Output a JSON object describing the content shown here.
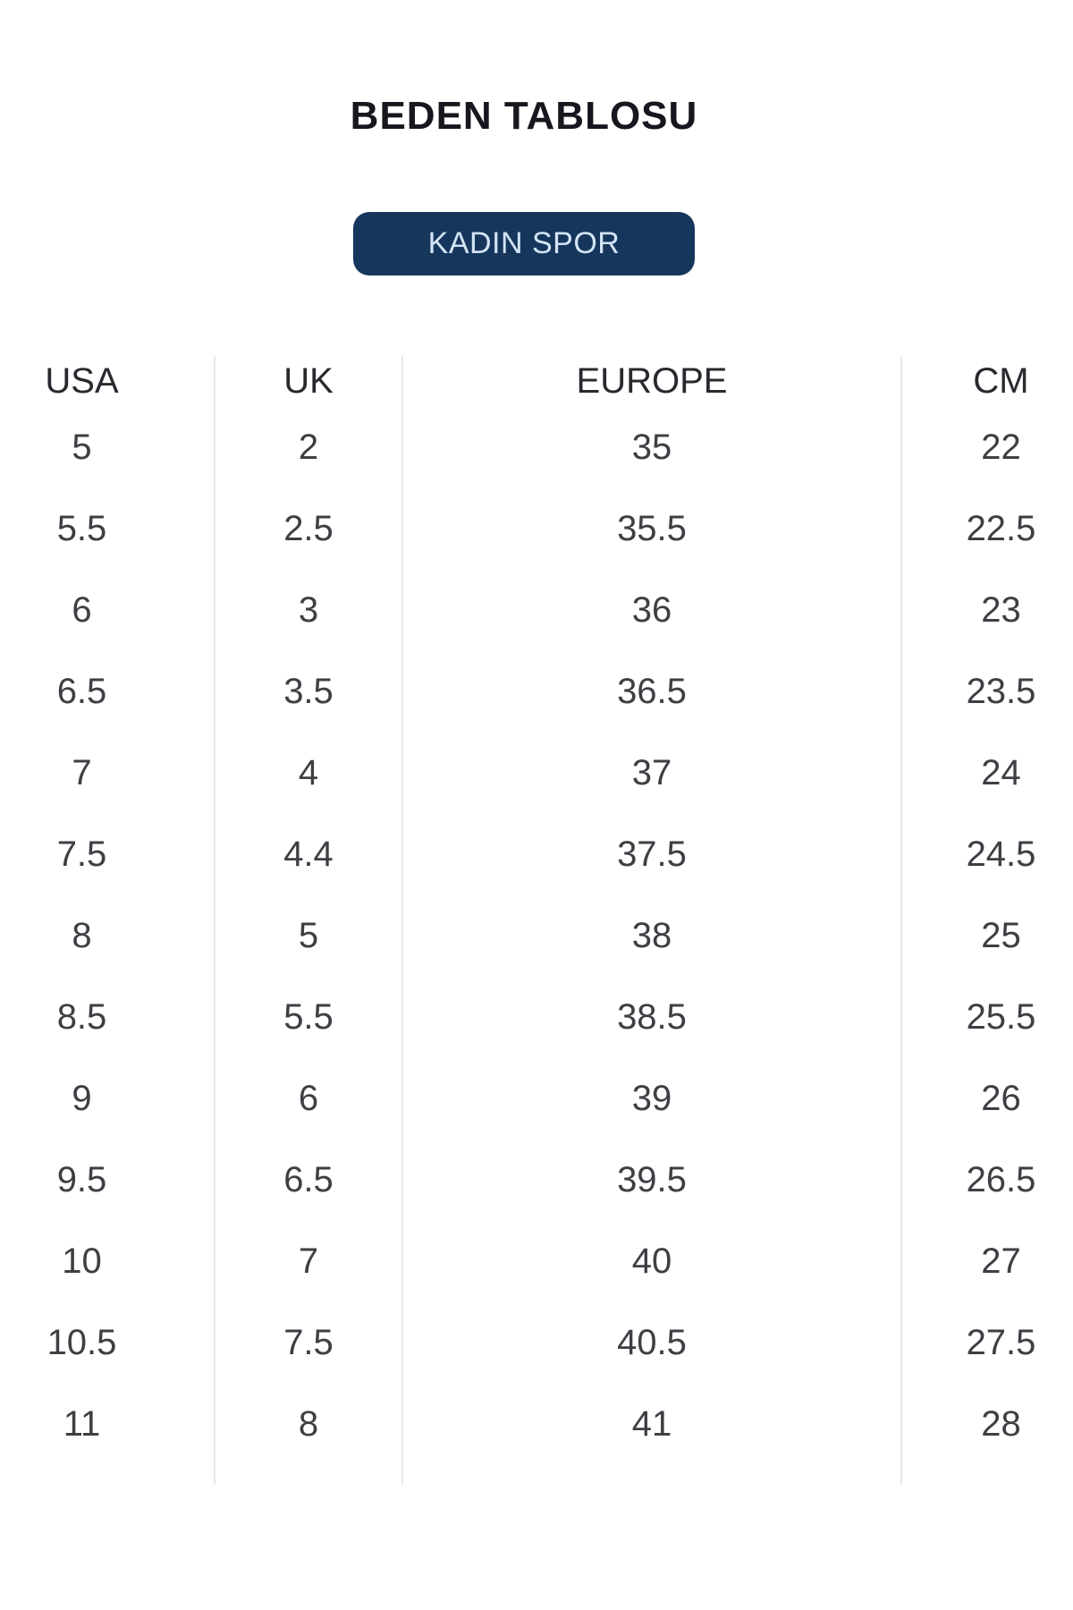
{
  "page": {
    "title": "BEDEN TABLOSU"
  },
  "category_button": {
    "label": "KADIN SPOR"
  },
  "size_table": {
    "columns": [
      "USA",
      "UK",
      "EUROPE",
      "CM"
    ],
    "rows": [
      [
        "5",
        "2",
        "35",
        "22"
      ],
      [
        "5.5",
        "2.5",
        "35.5",
        "22.5"
      ],
      [
        "6",
        "3",
        "36",
        "23"
      ],
      [
        "6.5",
        "3.5",
        "36.5",
        "23.5"
      ],
      [
        "7",
        "4",
        "37",
        "24"
      ],
      [
        "7.5",
        "4.4",
        "37.5",
        "24.5"
      ],
      [
        "8",
        "5",
        "38",
        "25"
      ],
      [
        "8.5",
        "5.5",
        "38.5",
        "25.5"
      ],
      [
        "9",
        "6",
        "39",
        "26"
      ],
      [
        "9.5",
        "6.5",
        "39.5",
        "26.5"
      ],
      [
        "10",
        "7",
        "40",
        "27"
      ],
      [
        "10.5",
        "7.5",
        "40.5",
        "27.5"
      ],
      [
        "11",
        "8",
        "41",
        "28"
      ]
    ]
  },
  "colors": {
    "title_color": "#17171f",
    "header_text": "#28282e",
    "cell_text": "#3e3e44",
    "divider": "#e8e8e8",
    "button_bg": "#16365c",
    "button_text": "#d3e4f5",
    "page_bg": "#ffffff"
  }
}
